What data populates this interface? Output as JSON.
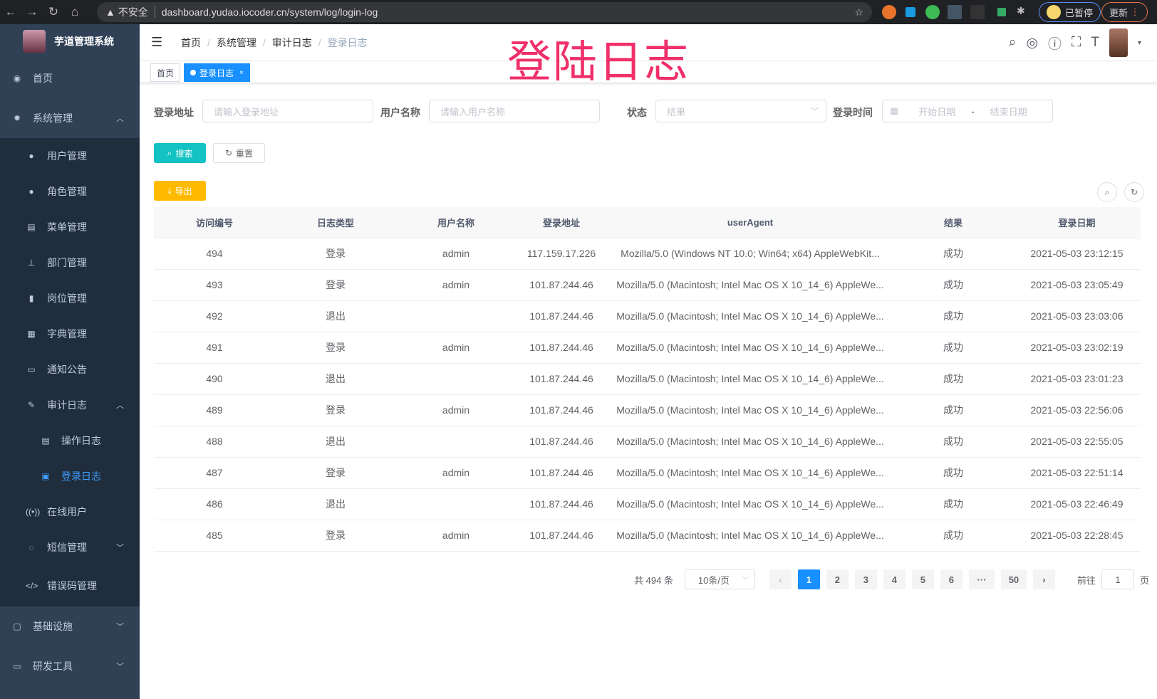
{
  "browser": {
    "url_security": "不安全",
    "url": "dashboard.yudao.iocoder.cn/system/log/login-log",
    "paused": "已暂停",
    "update": "更新"
  },
  "overlay_title": "登陆日志",
  "sidebar": {
    "app_title": "芋道管理系统",
    "items": [
      {
        "label": "首页",
        "icon": "dashboard-icon"
      },
      {
        "label": "系统管理",
        "icon": "gear-icon",
        "expanded": true
      },
      {
        "label": "用户管理",
        "icon": "user-icon"
      },
      {
        "label": "角色管理",
        "icon": "peoples-icon"
      },
      {
        "label": "菜单管理",
        "icon": "tree-table-icon"
      },
      {
        "label": "部门管理",
        "icon": "tree-icon"
      },
      {
        "label": "岗位管理",
        "icon": "post-icon"
      },
      {
        "label": "字典管理",
        "icon": "dict-icon"
      },
      {
        "label": "通知公告",
        "icon": "message-icon"
      },
      {
        "label": "审计日志",
        "icon": "log-icon",
        "expanded": true
      },
      {
        "label": "操作日志",
        "icon": "form-icon"
      },
      {
        "label": "登录日志",
        "icon": "logininfor-icon",
        "active": true
      },
      {
        "label": "在线用户",
        "icon": "online-icon"
      },
      {
        "label": "短信管理",
        "icon": "shield-icon"
      },
      {
        "label": "错误码管理",
        "icon": "code-icon"
      },
      {
        "label": "基础设施",
        "icon": "monitor-icon"
      },
      {
        "label": "研发工具",
        "icon": "tool-icon"
      }
    ]
  },
  "breadcrumb": [
    "首页",
    "系统管理",
    "审计日志",
    "登录日志"
  ],
  "tags": [
    {
      "label": "首页"
    },
    {
      "label": "登录日志"
    }
  ],
  "search": {
    "address_label": "登录地址",
    "address_placeholder": "请输入登录地址",
    "username_label": "用户名称",
    "username_placeholder": "请输入用户名称",
    "status_label": "状态",
    "status_placeholder": "结果",
    "time_label": "登录时间",
    "start_placeholder": "开始日期",
    "sep": "-",
    "end_placeholder": "结束日期",
    "search_btn": "搜索",
    "reset_btn": "重置"
  },
  "export_btn": "导出",
  "table": {
    "headers": [
      "访问编号",
      "日志类型",
      "用户名称",
      "登录地址",
      "userAgent",
      "结果",
      "登录日期"
    ],
    "rows": [
      [
        "494",
        "登录",
        "admin",
        "117.159.17.226",
        "Mozilla/5.0 (Windows NT 10.0; Win64; x64) AppleWebKit...",
        "成功",
        "2021-05-03 23:12:15"
      ],
      [
        "493",
        "登录",
        "admin",
        "101.87.244.46",
        "Mozilla/5.0 (Macintosh; Intel Mac OS X 10_14_6) AppleWe...",
        "成功",
        "2021-05-03 23:05:49"
      ],
      [
        "492",
        "退出",
        "",
        "101.87.244.46",
        "Mozilla/5.0 (Macintosh; Intel Mac OS X 10_14_6) AppleWe...",
        "成功",
        "2021-05-03 23:03:06"
      ],
      [
        "491",
        "登录",
        "admin",
        "101.87.244.46",
        "Mozilla/5.0 (Macintosh; Intel Mac OS X 10_14_6) AppleWe...",
        "成功",
        "2021-05-03 23:02:19"
      ],
      [
        "490",
        "退出",
        "",
        "101.87.244.46",
        "Mozilla/5.0 (Macintosh; Intel Mac OS X 10_14_6) AppleWe...",
        "成功",
        "2021-05-03 23:01:23"
      ],
      [
        "489",
        "登录",
        "admin",
        "101.87.244.46",
        "Mozilla/5.0 (Macintosh; Intel Mac OS X 10_14_6) AppleWe...",
        "成功",
        "2021-05-03 22:56:06"
      ],
      [
        "488",
        "退出",
        "",
        "101.87.244.46",
        "Mozilla/5.0 (Macintosh; Intel Mac OS X 10_14_6) AppleWe...",
        "成功",
        "2021-05-03 22:55:05"
      ],
      [
        "487",
        "登录",
        "admin",
        "101.87.244.46",
        "Mozilla/5.0 (Macintosh; Intel Mac OS X 10_14_6) AppleWe...",
        "成功",
        "2021-05-03 22:51:14"
      ],
      [
        "486",
        "退出",
        "",
        "101.87.244.46",
        "Mozilla/5.0 (Macintosh; Intel Mac OS X 10_14_6) AppleWe...",
        "成功",
        "2021-05-03 22:46:49"
      ],
      [
        "485",
        "登录",
        "admin",
        "101.87.244.46",
        "Mozilla/5.0 (Macintosh; Intel Mac OS X 10_14_6) AppleWe...",
        "成功",
        "2021-05-03 22:28:45"
      ]
    ]
  },
  "pagination": {
    "total": "共 494 条",
    "page_size": "10条/页",
    "pages": [
      "1",
      "2",
      "3",
      "4",
      "5",
      "6",
      "···",
      "50"
    ],
    "current": "1",
    "goto_label": "前往",
    "goto_value": "1",
    "goto_suffix": "页"
  },
  "colors": {
    "sidebar": "#304156",
    "primary": "#1890ff",
    "search": "#13c2c2",
    "export": "#ffba00",
    "watermark": "#f0306a"
  }
}
